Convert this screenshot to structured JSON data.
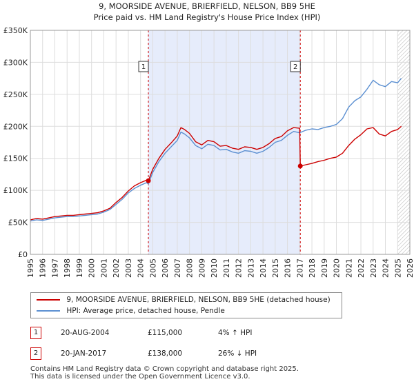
{
  "chart_data": {
    "type": "line",
    "title": "9, MOORSIDE AVENUE, BRIERFIELD, NELSON, BB9 5HE",
    "subtitle": "Price paid vs. HM Land Registry's House Price Index (HPI)",
    "xlim": [
      1995,
      2026
    ],
    "ylim": [
      0,
      350000
    ],
    "x_ticks": [
      1995,
      1996,
      1997,
      1998,
      1999,
      2000,
      2001,
      2002,
      2003,
      2004,
      2005,
      2006,
      2007,
      2008,
      2009,
      2010,
      2011,
      2012,
      2013,
      2014,
      2015,
      2016,
      2017,
      2018,
      2019,
      2020,
      2021,
      2022,
      2023,
      2024,
      2025,
      2026
    ],
    "y_ticks": [
      {
        "value": 0,
        "label": "£0"
      },
      {
        "value": 50000,
        "label": "£50K"
      },
      {
        "value": 100000,
        "label": "£100K"
      },
      {
        "value": 150000,
        "label": "£150K"
      },
      {
        "value": 200000,
        "label": "£200K"
      },
      {
        "value": 250000,
        "label": "£250K"
      },
      {
        "value": 300000,
        "label": "£300K"
      },
      {
        "value": 350000,
        "label": "£350K"
      }
    ],
    "shaded_range": [
      2004.64,
      2017.05
    ],
    "hatched_from": 2025.0,
    "series": [
      {
        "name": "HPI: Average price, detached house, Pendle",
        "color": "#5b8fd1",
        "x": [
          1995,
          1995.5,
          1996,
          1996.5,
          1997,
          1997.5,
          1998,
          1998.5,
          1999,
          1999.5,
          2000,
          2000.5,
          2001,
          2001.5,
          2002,
          2002.5,
          2003,
          2003.5,
          2004,
          2004.5,
          2004.64,
          2005,
          2005.5,
          2006,
          2006.5,
          2007,
          2007.3,
          2007.6,
          2008,
          2008.5,
          2009,
          2009.5,
          2010,
          2010.5,
          2011,
          2011.5,
          2012,
          2012.5,
          2013,
          2013.5,
          2014,
          2014.5,
          2015,
          2015.5,
          2016,
          2016.5,
          2017,
          2017.5,
          2018,
          2018.5,
          2019,
          2019.5,
          2020,
          2020.5,
          2021,
          2021.5,
          2022,
          2022.5,
          2023,
          2023.5,
          2024,
          2024.5,
          2025,
          2025.3
        ],
        "values": [
          52000,
          54000,
          53000,
          55000,
          57000,
          58000,
          59000,
          59000,
          60000,
          61000,
          62000,
          63000,
          66000,
          70000,
          78000,
          86000,
          96000,
          103000,
          108000,
          112000,
          110000,
          128000,
          145000,
          158000,
          168000,
          178000,
          191000,
          188000,
          182000,
          170000,
          165000,
          172000,
          170000,
          163000,
          164000,
          160000,
          158000,
          162000,
          161000,
          158000,
          161000,
          167000,
          175000,
          178000,
          186000,
          192000,
          190000,
          194000,
          196000,
          195000,
          198000,
          200000,
          203000,
          212000,
          230000,
          240000,
          246000,
          258000,
          272000,
          265000,
          262000,
          270000,
          268000,
          275000
        ]
      },
      {
        "name": "9, MOORSIDE AVENUE, BRIERFIELD, NELSON, BB9 5HE (detached house)",
        "color": "#cc0000",
        "x": [
          1995,
          1995.5,
          1996,
          1996.5,
          1997,
          1997.5,
          1998,
          1998.5,
          1999,
          1999.5,
          2000,
          2000.5,
          2001,
          2001.5,
          2002,
          2002.5,
          2003,
          2003.5,
          2004,
          2004.5,
          2004.64,
          2005,
          2005.5,
          2006,
          2006.5,
          2007,
          2007.3,
          2007.6,
          2008,
          2008.5,
          2009,
          2009.5,
          2010,
          2010.5,
          2011,
          2011.5,
          2012,
          2012.5,
          2013,
          2013.5,
          2014,
          2014.5,
          2015,
          2015.5,
          2016,
          2016.5,
          2017,
          2017.05,
          2017.5,
          2018,
          2018.5,
          2019,
          2019.5,
          2020,
          2020.5,
          2021,
          2021.5,
          2022,
          2022.5,
          2023,
          2023.5,
          2024,
          2024.5,
          2025,
          2025.3
        ],
        "values": [
          54000,
          56000,
          55000,
          57000,
          59000,
          60000,
          61000,
          61000,
          62000,
          63000,
          64000,
          65000,
          68000,
          72000,
          81000,
          89000,
          99000,
          107000,
          112000,
          116000,
          115000,
          133000,
          150000,
          164000,
          174000,
          185000,
          198000,
          195000,
          189000,
          176000,
          171000,
          178000,
          176000,
          169000,
          170000,
          166000,
          164000,
          168000,
          167000,
          164000,
          167000,
          173000,
          181000,
          184000,
          193000,
          198000,
          197000,
          138000,
          140000,
          142000,
          145000,
          147000,
          150000,
          152000,
          158000,
          170000,
          180000,
          187000,
          196000,
          198000,
          188000,
          185000,
          192000,
          195000,
          200000
        ]
      }
    ],
    "sale_points": [
      {
        "label": "1",
        "x": 2004.64,
        "value": 115000
      },
      {
        "label": "2",
        "x": 2017.05,
        "value": 138000
      }
    ]
  },
  "legend": {
    "property_label": "9, MOORSIDE AVENUE, BRIERFIELD, NELSON, BB9 5HE (detached house)",
    "hpi_label": "HPI: Average price, detached house, Pendle"
  },
  "transactions": [
    {
      "num": "1",
      "date": "20-AUG-2004",
      "price": "£115,000",
      "hpi": "4% ↑ HPI"
    },
    {
      "num": "2",
      "date": "20-JAN-2017",
      "price": "£138,000",
      "hpi": "26% ↓ HPI"
    }
  ],
  "footer": {
    "line1": "Contains HM Land Registry data © Crown copyright and database right 2025.",
    "line2": "This data is licensed under the Open Government Licence v3.0."
  },
  "colors": {
    "property": "#cc0000",
    "hpi": "#5b8fd1",
    "shade": "#e6ecfb",
    "grid": "#dddddd"
  }
}
